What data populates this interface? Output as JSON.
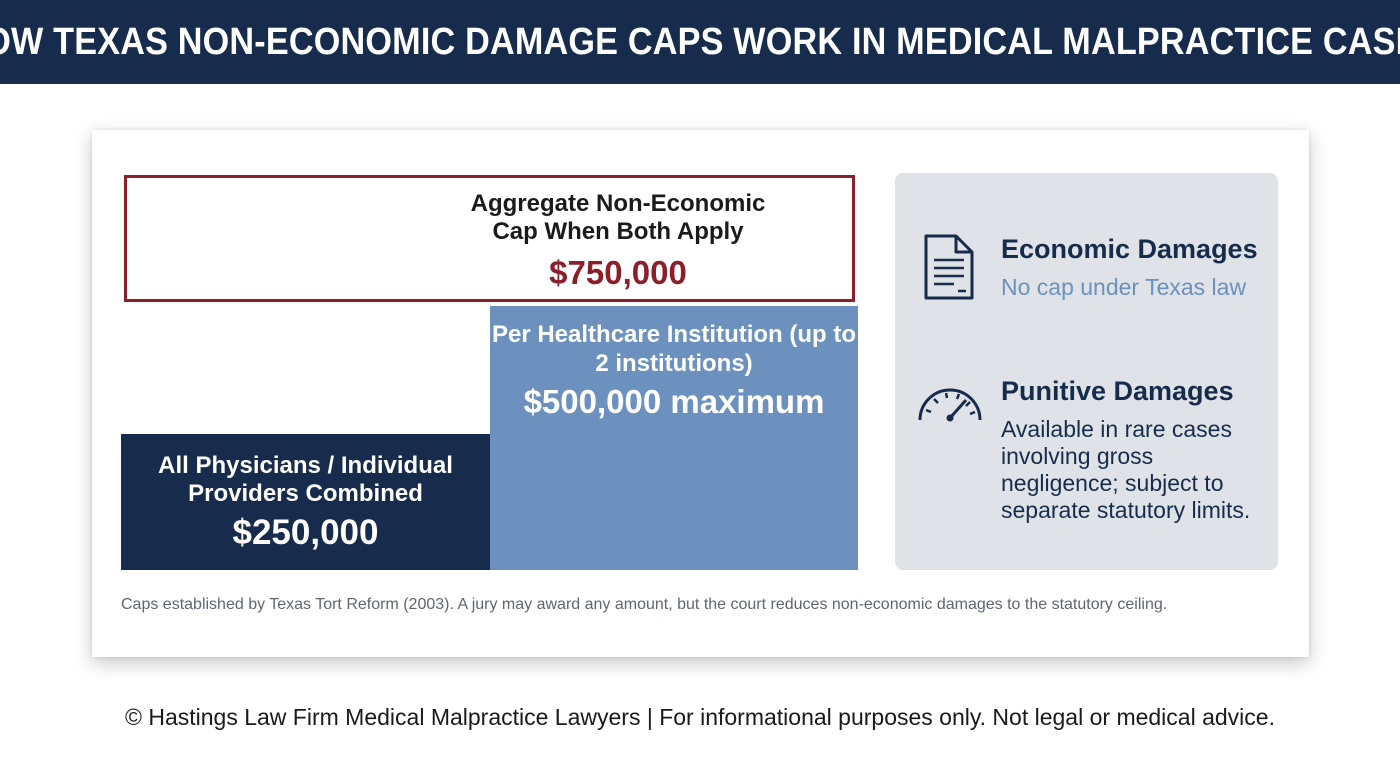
{
  "header": {
    "title": "HOW TEXAS NON-ECONOMIC DAMAGE CAPS WORK IN MEDICAL MALPRACTICE CASES"
  },
  "diagram": {
    "aggregate": {
      "title": "Aggregate Non-Economic Cap When Both Apply",
      "amount": "$750,000",
      "color": "#8b1f2a"
    },
    "institution": {
      "title": "Per Healthcare Institution (up to 2 institutions)",
      "amount": "$500,000 maximum",
      "color": "#6c91bf"
    },
    "physicians": {
      "title": "All Physicians / Individual Providers Combined",
      "amount": "$250,000",
      "color": "#172c4d"
    }
  },
  "side_panel": {
    "economic": {
      "icon": "document-icon",
      "title": "Economic Damages",
      "description": "No cap under Texas law"
    },
    "punitive": {
      "icon": "gauge-icon",
      "title": "Punitive Damages",
      "description": "Available in rare cases involving gross negligence; subject to separate statutory limits."
    }
  },
  "footnote": "Caps established by Texas Tort Reform (2003). A jury may award any amount, but the court reduces non-economic damages to the statutory ceiling.",
  "copyright": "© Hastings Law Firm Medical Malpractice Lawyers | For informational purposes only. Not legal or medical advice."
}
